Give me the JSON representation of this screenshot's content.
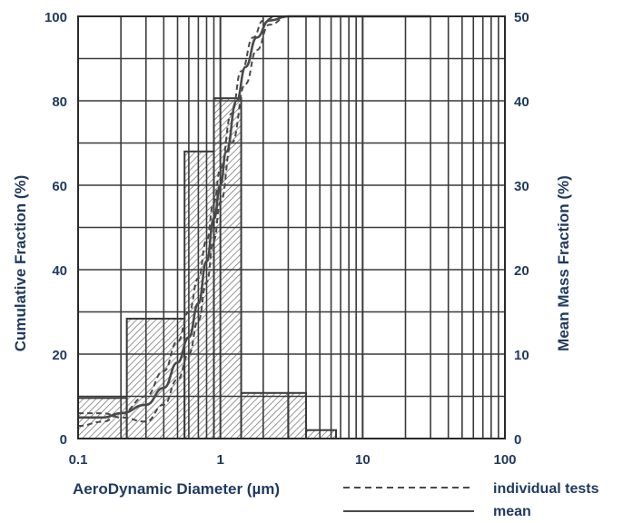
{
  "chart_data": {
    "type": "histogram-with-cumulative-curves",
    "xlabel": "AeroDynamic Diameter (µm)",
    "ylabel_left": "Cumulative Fraction (%)",
    "ylabel_right": "Mean Mass Fraction (%)",
    "x_scale": "log",
    "xlim": [
      0.1,
      100
    ],
    "ylim_left": [
      0,
      100
    ],
    "ylim_right": [
      0,
      50
    ],
    "x_ticks": [
      {
        "value": 0.1,
        "label": "0.1"
      },
      {
        "value": 1,
        "label": "1"
      },
      {
        "value": 10,
        "label": "10"
      },
      {
        "value": 100,
        "label": "100"
      }
    ],
    "y_ticks_left": [
      {
        "value": 0,
        "label": "0"
      },
      {
        "value": 20,
        "label": "20"
      },
      {
        "value": 40,
        "label": "40"
      },
      {
        "value": 60,
        "label": "60"
      },
      {
        "value": 80,
        "label": "80"
      },
      {
        "value": 100,
        "label": "100"
      }
    ],
    "y_ticks_right": [
      {
        "value": 0,
        "label": "0"
      },
      {
        "value": 10,
        "label": "10"
      },
      {
        "value": 20,
        "label": "20"
      },
      {
        "value": 30,
        "label": "30"
      },
      {
        "value": 40,
        "label": "40"
      },
      {
        "value": 50,
        "label": "50"
      }
    ],
    "grid": true,
    "bars": [
      {
        "x0": 0.1,
        "x1": 0.22,
        "value": 4.8
      },
      {
        "x0": 0.22,
        "x1": 0.56,
        "value": 14.2
      },
      {
        "x0": 0.56,
        "x1": 0.9,
        "value": 34.0
      },
      {
        "x0": 0.9,
        "x1": 1.4,
        "value": 40.3
      },
      {
        "x0": 1.4,
        "x1": 3.0,
        "value": 5.4
      },
      {
        "x0": 3.0,
        "x1": 4.0,
        "value": 5.4
      },
      {
        "x0": 4.0,
        "x1": 6.5,
        "value": 1.0
      }
    ],
    "series": [
      {
        "name": "mean",
        "style": "solid",
        "x": [
          0.1,
          0.15,
          0.2,
          0.3,
          0.4,
          0.5,
          0.6,
          0.7,
          0.8,
          0.9,
          1.0,
          1.1,
          1.3,
          1.5,
          1.8,
          2.2,
          3,
          5,
          10,
          30
        ],
        "y": [
          5,
          5,
          6,
          8,
          12,
          18,
          24,
          32,
          42,
          52,
          60,
          68,
          80,
          88,
          95,
          99,
          100,
          100,
          100,
          100
        ]
      },
      {
        "name": "individual tests",
        "style": "dashed",
        "x": [
          0.1,
          0.15,
          0.2,
          0.3,
          0.4,
          0.5,
          0.6,
          0.7,
          0.8,
          0.9,
          1.0,
          1.2,
          1.4,
          1.7,
          2.0,
          2.5,
          5,
          10,
          30
        ],
        "y": [
          3,
          4,
          6,
          10,
          16,
          23,
          30,
          38,
          47,
          56,
          64,
          77,
          87,
          95,
          99,
          100,
          100,
          100,
          100
        ]
      },
      {
        "name": "individual tests",
        "style": "dashed",
        "x": [
          0.1,
          0.15,
          0.2,
          0.3,
          0.4,
          0.5,
          0.6,
          0.7,
          0.8,
          0.9,
          1.0,
          1.2,
          1.5,
          1.8,
          2.2,
          3,
          5,
          10,
          30
        ],
        "y": [
          6,
          6,
          5,
          4,
          8,
          14,
          20,
          28,
          37,
          47,
          56,
          70,
          84,
          92,
          98,
          100,
          100,
          100,
          100
        ]
      }
    ],
    "legend": [
      {
        "label": "individual tests",
        "style": "dashed"
      },
      {
        "label": "mean",
        "style": "solid"
      }
    ],
    "legend_position": "bottom-right"
  },
  "colors": {
    "axis_text": "#1f3a5f",
    "grid": "#3a3a3a",
    "curve": "#4a4a4a",
    "hatch": "#6a6a6a"
  }
}
